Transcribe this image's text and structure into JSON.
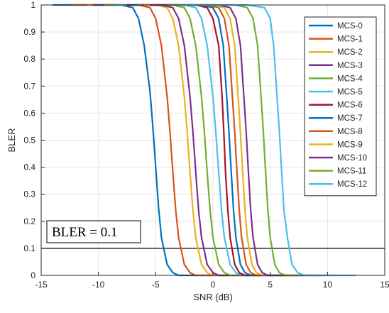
{
  "chart_data": {
    "type": "line",
    "xlabel": "SNR (dB)",
    "ylabel": "BLER",
    "xlim": [
      -15,
      15
    ],
    "ylim": [
      0,
      1
    ],
    "xticks": [
      -15,
      -10,
      -5,
      0,
      5,
      10,
      15
    ],
    "yticks": [
      0,
      0.1,
      0.2,
      0.3,
      0.4,
      0.5,
      0.6,
      0.7,
      0.8,
      0.9,
      1
    ],
    "grid": true,
    "legend_position": "top-right",
    "reference_line": {
      "y": 0.1,
      "color": "#000000"
    },
    "annotation": {
      "text": "BLER = 0.1"
    },
    "series": [
      {
        "name": "MCS-0",
        "color": "#0072BD",
        "x": [
          -8,
          -7,
          -6.5,
          -6,
          -5.5,
          -5.25,
          -5,
          -4.75,
          -4.5,
          -4,
          -3.5,
          -3
        ],
        "y": [
          1,
          0.99,
          0.95,
          0.85,
          0.68,
          0.55,
          0.4,
          0.25,
          0.14,
          0.04,
          0.01,
          0
        ]
      },
      {
        "name": "MCS-1",
        "color": "#D95319",
        "x": [
          -6.5,
          -5.5,
          -5,
          -4.5,
          -4,
          -3.75,
          -3.5,
          -3.25,
          -3,
          -2.5,
          -2,
          -1.5
        ],
        "y": [
          1,
          0.99,
          0.95,
          0.85,
          0.66,
          0.53,
          0.38,
          0.24,
          0.14,
          0.04,
          0.01,
          0
        ]
      },
      {
        "name": "MCS-2",
        "color": "#EDB120",
        "x": [
          -5,
          -4,
          -3.5,
          -3,
          -2.5,
          -2.25,
          -2,
          -1.75,
          -1.5,
          -1,
          -0.5,
          0
        ],
        "y": [
          1,
          0.99,
          0.95,
          0.85,
          0.66,
          0.53,
          0.38,
          0.24,
          0.14,
          0.04,
          0.01,
          0
        ]
      },
      {
        "name": "MCS-3",
        "color": "#7E2F8E",
        "x": [
          -4.5,
          -3.5,
          -3,
          -2.5,
          -2,
          -1.75,
          -1.5,
          -1.25,
          -1,
          -0.5,
          0,
          0.5
        ],
        "y": [
          1,
          0.99,
          0.95,
          0.85,
          0.66,
          0.53,
          0.38,
          0.24,
          0.14,
          0.04,
          0.01,
          0
        ]
      },
      {
        "name": "MCS-4",
        "color": "#77AC30",
        "x": [
          -3.5,
          -2.5,
          -2,
          -1.5,
          -1,
          -0.75,
          -0.5,
          -0.25,
          0,
          0.5,
          1,
          1.5
        ],
        "y": [
          1,
          0.99,
          0.95,
          0.85,
          0.66,
          0.53,
          0.38,
          0.24,
          0.14,
          0.04,
          0.01,
          0
        ]
      },
      {
        "name": "MCS-5",
        "color": "#4DBEEE",
        "x": [
          -2.5,
          -1.5,
          -1,
          -0.5,
          0,
          0.25,
          0.5,
          0.75,
          1,
          1.5,
          2,
          2.5
        ],
        "y": [
          1,
          0.99,
          0.95,
          0.85,
          0.66,
          0.53,
          0.38,
          0.24,
          0.14,
          0.04,
          0.01,
          0
        ]
      },
      {
        "name": "MCS-6",
        "color": "#A2142F",
        "x": [
          -1.5,
          -0.5,
          0,
          0.5,
          0.8,
          0.95,
          1.1,
          1.3,
          1.5,
          1.9,
          2.3,
          2.8
        ],
        "y": [
          1,
          0.99,
          0.95,
          0.85,
          0.66,
          0.53,
          0.38,
          0.24,
          0.14,
          0.04,
          0.01,
          0
        ]
      },
      {
        "name": "MCS-7",
        "color": "#0072BD",
        "x": [
          -1,
          0,
          0.5,
          0.9,
          1.2,
          1.4,
          1.6,
          1.8,
          2,
          2.4,
          2.8,
          3.3
        ],
        "y": [
          1,
          0.99,
          0.95,
          0.85,
          0.66,
          0.53,
          0.38,
          0.24,
          0.14,
          0.04,
          0.01,
          0
        ]
      },
      {
        "name": "MCS-8",
        "color": "#D95319",
        "x": [
          -0.5,
          0.5,
          1,
          1.4,
          1.7,
          1.9,
          2.1,
          2.3,
          2.5,
          2.9,
          3.3,
          3.8
        ],
        "y": [
          1,
          0.99,
          0.95,
          0.85,
          0.66,
          0.53,
          0.38,
          0.24,
          0.14,
          0.04,
          0.01,
          0
        ]
      },
      {
        "name": "MCS-9",
        "color": "#EDB120",
        "x": [
          0,
          1,
          1.5,
          1.9,
          2.2,
          2.4,
          2.6,
          2.8,
          3,
          3.4,
          3.8,
          4.3
        ],
        "y": [
          1,
          0.99,
          0.95,
          0.85,
          0.66,
          0.53,
          0.38,
          0.24,
          0.14,
          0.04,
          0.01,
          0
        ]
      },
      {
        "name": "MCS-10",
        "color": "#7E2F8E",
        "x": [
          0.5,
          1.5,
          2,
          2.4,
          2.7,
          2.9,
          3.1,
          3.3,
          3.5,
          3.9,
          4.3,
          4.8
        ],
        "y": [
          1,
          0.99,
          0.95,
          0.85,
          0.66,
          0.53,
          0.38,
          0.24,
          0.14,
          0.04,
          0.01,
          0
        ]
      },
      {
        "name": "MCS-11",
        "color": "#77AC30",
        "x": [
          2,
          3,
          3.5,
          3.9,
          4.2,
          4.4,
          4.6,
          4.8,
          5,
          5.4,
          5.8,
          6.3
        ],
        "y": [
          1,
          0.99,
          0.95,
          0.85,
          0.66,
          0.53,
          0.38,
          0.24,
          0.14,
          0.04,
          0.01,
          0
        ]
      },
      {
        "name": "MCS-12",
        "color": "#4DBEEE",
        "x": [
          3,
          4.5,
          5,
          5.3,
          5.6,
          5.8,
          6,
          6.2,
          6.5,
          6.9,
          7.4,
          8
        ],
        "y": [
          1,
          0.99,
          0.95,
          0.85,
          0.66,
          0.53,
          0.38,
          0.24,
          0.14,
          0.04,
          0.01,
          0
        ]
      }
    ]
  }
}
